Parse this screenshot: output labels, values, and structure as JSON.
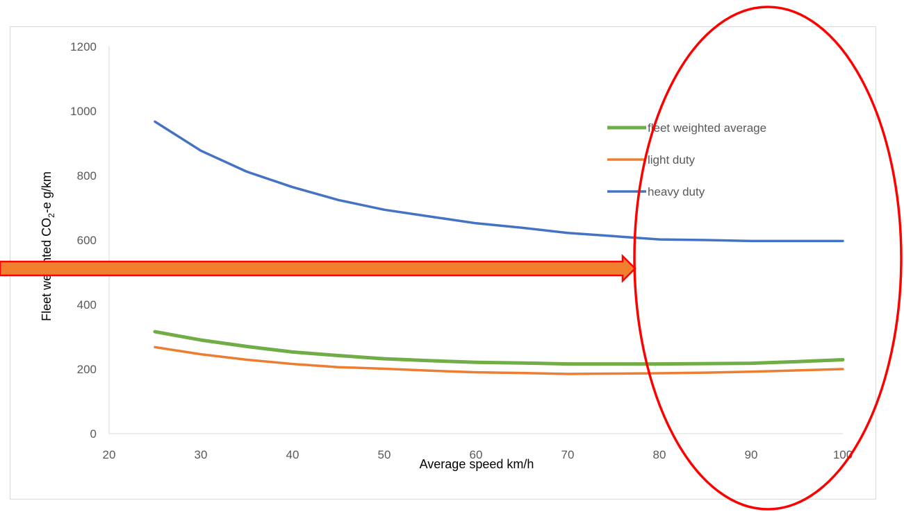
{
  "chart_data": {
    "type": "line",
    "xlabel": "Average speed km/h",
    "ylabel_parts": {
      "pre": "Fleet weighted CO",
      "sub": "2",
      "post": "-e g/km"
    },
    "xlim": [
      20,
      100
    ],
    "ylim": [
      0,
      1200
    ],
    "xticks": [
      20,
      30,
      40,
      50,
      60,
      70,
      80,
      90,
      100
    ],
    "yticks": [
      0,
      200,
      400,
      600,
      800,
      1000,
      1200
    ],
    "grid": false,
    "legend_position": "right",
    "x": [
      25,
      30,
      35,
      40,
      45,
      50,
      55,
      60,
      65,
      70,
      75,
      80,
      85,
      90,
      95,
      100
    ],
    "series": [
      {
        "name": "fleet weighted average",
        "color": "#70ad47",
        "values": [
          316,
          290,
          270,
          253,
          242,
          232,
          226,
          221,
          219,
          216,
          216,
          216,
          217,
          218,
          223,
          229
        ]
      },
      {
        "name": "light duty",
        "color": "#ed7d31",
        "values": [
          268,
          246,
          229,
          216,
          206,
          201,
          195,
          190,
          188,
          185,
          186,
          187,
          189,
          192,
          196,
          200
        ]
      },
      {
        "name": "heavy duty",
        "color": "#4472c4",
        "values": [
          967,
          877,
          812,
          764,
          724,
          694,
          673,
          652,
          638,
          622,
          612,
          602,
          600,
          597,
          597,
          597
        ]
      }
    ]
  },
  "annotations": {
    "arrow_fill": "#f08030",
    "arrow_outline": "#ff0000",
    "ellipse_color": "#ff0000"
  }
}
